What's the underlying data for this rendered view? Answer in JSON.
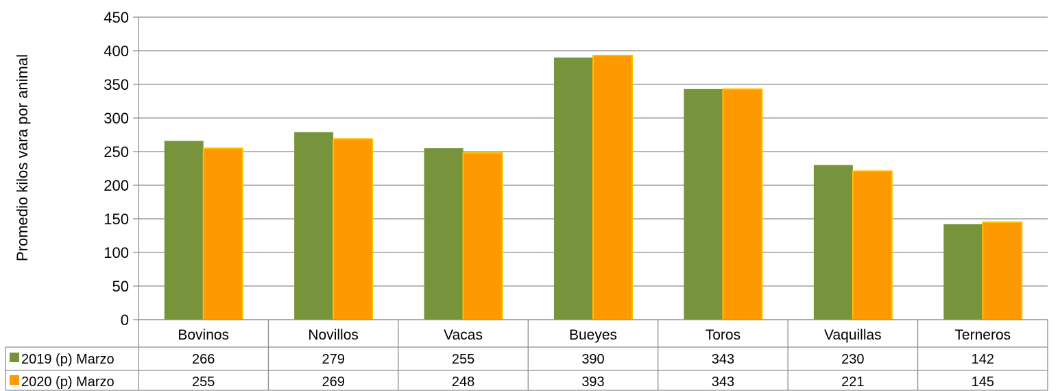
{
  "chart_data": {
    "type": "bar",
    "ylabel": "Promedio kilos vara por animal",
    "ylim": [
      0,
      450
    ],
    "yticks": [
      0,
      50,
      100,
      150,
      200,
      250,
      300,
      350,
      400,
      450
    ],
    "grid": true,
    "legend": "data-table-left",
    "categories": [
      "Bovinos",
      "Novillos",
      "Vacas",
      "Bueyes",
      "Toros",
      "Vaquillas",
      "Terneros"
    ],
    "series": [
      {
        "name": "2019 (p) Marzo",
        "color": "#77933c",
        "values": [
          266,
          279,
          255,
          390,
          343,
          230,
          142
        ]
      },
      {
        "name": "2020 (p) Marzo",
        "color": "#ff9900",
        "values": [
          255,
          269,
          248,
          393,
          343,
          221,
          145
        ]
      }
    ]
  }
}
